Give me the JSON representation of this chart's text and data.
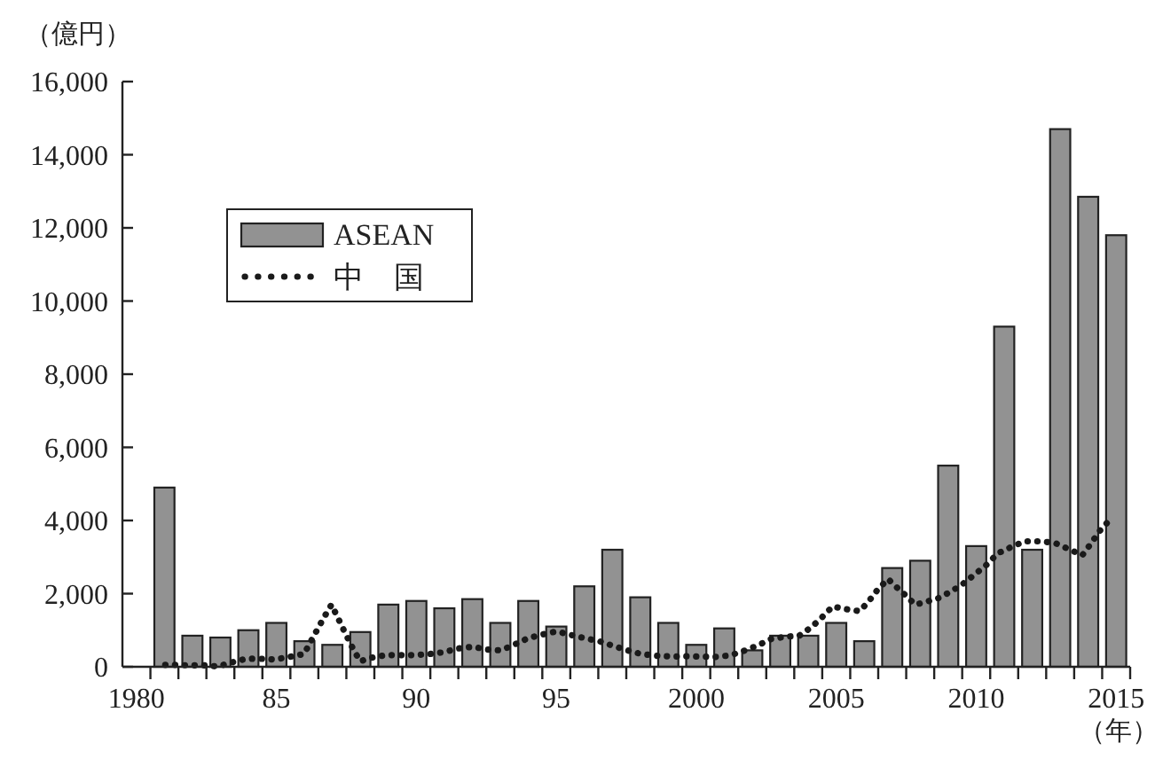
{
  "chart_data": {
    "type": "bar",
    "ylabel": "（億円）",
    "xlabel": "（年）",
    "xlim": [
      1979.5,
      2015.5
    ],
    "xticks": [
      {
        "value": 1980,
        "label": "1980"
      },
      {
        "value": 1985,
        "label": "85"
      },
      {
        "value": 1990,
        "label": "90"
      },
      {
        "value": 1995,
        "label": "95"
      },
      {
        "value": 2000,
        "label": "2000"
      },
      {
        "value": 2005,
        "label": "2005"
      },
      {
        "value": 2010,
        "label": "2010"
      },
      {
        "value": 2015,
        "label": "2015"
      },
      {
        "value": 1980.5,
        "label": null
      },
      {
        "value": 1981.5,
        "label": null
      },
      {
        "value": 1982.5,
        "label": null
      },
      {
        "value": 1983.5,
        "label": null
      },
      {
        "value": 1984.5,
        "label": null
      },
      {
        "value": 1985.5,
        "label": null
      },
      {
        "value": 1986.5,
        "label": null
      },
      {
        "value": 1987.5,
        "label": null
      },
      {
        "value": 1988.5,
        "label": null
      },
      {
        "value": 1989.5,
        "label": null
      },
      {
        "value": 1990.5,
        "label": null
      },
      {
        "value": 1991.5,
        "label": null
      },
      {
        "value": 1992.5,
        "label": null
      },
      {
        "value": 1993.5,
        "label": null
      },
      {
        "value": 1994.5,
        "label": null
      },
      {
        "value": 1995.5,
        "label": null
      },
      {
        "value": 1996.5,
        "label": null
      },
      {
        "value": 1997.5,
        "label": null
      },
      {
        "value": 1998.5,
        "label": null
      },
      {
        "value": 1999.5,
        "label": null
      },
      {
        "value": 2000.5,
        "label": null
      },
      {
        "value": 2001.5,
        "label": null
      },
      {
        "value": 2002.5,
        "label": null
      },
      {
        "value": 2003.5,
        "label": null
      },
      {
        "value": 2004.5,
        "label": null
      },
      {
        "value": 2005.5,
        "label": null
      },
      {
        "value": 2006.5,
        "label": null
      },
      {
        "value": 2007.5,
        "label": null
      },
      {
        "value": 2008.5,
        "label": null
      },
      {
        "value": 2009.5,
        "label": null
      },
      {
        "value": 2010.5,
        "label": null
      },
      {
        "value": 2011.5,
        "label": null
      },
      {
        "value": 2012.5,
        "label": null
      },
      {
        "value": 2013.5,
        "label": null
      },
      {
        "value": 2014.5,
        "label": null
      },
      {
        "value": 2015.5,
        "label": null
      }
    ],
    "ylim": [
      0,
      16000
    ],
    "yticks": [
      0,
      {
        "value": 2000,
        "label": "2,000"
      },
      {
        "value": 4000,
        "label": "4,000"
      },
      {
        "value": 6000,
        "label": "6,000"
      },
      {
        "value": 8000,
        "label": "8,000"
      },
      {
        "value": 10000,
        "label": "10,000"
      },
      {
        "value": 12000,
        "label": "12,000"
      },
      {
        "value": 14000,
        "label": "14,000"
      },
      {
        "value": 16000,
        "label": "16,000"
      }
    ],
    "legend": "left",
    "grid": false,
    "series": [
      {
        "name": "ASEAN",
        "color": "#929292",
        "x": [
          1981,
          1982,
          1983,
          1984,
          1985,
          1986,
          1987,
          1988,
          1989,
          1990,
          1991,
          1992,
          1993,
          1994,
          1995,
          1996,
          1997,
          1998,
          1999,
          2000,
          2001,
          2002,
          2003,
          2004,
          2005,
          2006,
          2007,
          2008,
          2009,
          2010,
          2011,
          2012,
          2013,
          2014,
          2015
        ],
        "values": [
          4900,
          850,
          800,
          1000,
          1200,
          700,
          600,
          950,
          1700,
          1800,
          1600,
          1850,
          1200,
          1800,
          1100,
          2200,
          3200,
          1900,
          1200,
          600,
          1050,
          450,
          850,
          850,
          1200,
          700,
          2700,
          2900,
          5500,
          3300,
          9300,
          3200,
          14700,
          12850,
          11800
        ]
      },
      {
        "name": "中　国",
        "type": "line",
        "color": "#1a1a1a",
        "line_style": "dotted",
        "x": [
          1981.03,
          1981.37,
          1981.87,
          1982.4,
          1982.9,
          1983.41,
          1983.92,
          1984.44,
          1984.95,
          1985.46,
          1985.99,
          1986.2,
          1986.45,
          1986.7,
          1986.97,
          1987.19,
          1987.44,
          1987.7,
          1987.99,
          1988.41,
          1988.92,
          1989.44,
          1989.95,
          1990.48,
          1990.99,
          1991.49,
          1992.02,
          1992.53,
          1993.03,
          1993.54,
          1993.98,
          1994.49,
          1995.01,
          1995.52,
          1996.03,
          1996.53,
          1997.04,
          1997.54,
          1998.03,
          1998.58,
          1999.13,
          1999.63,
          2000.16,
          2000.69,
          2001.2,
          2001.68,
          2002.19,
          2002.67,
          2003.18,
          2003.68,
          2004.11,
          2004.49,
          2004.87,
          2005.31,
          2005.84,
          2006.15,
          2006.47,
          2006.85,
          2007.15,
          2007.48,
          2007.82,
          2008.14,
          2008.66,
          2009.13,
          2009.55,
          2009.97,
          2010.39,
          2010.77,
          2011.24,
          2011.72,
          2012.27,
          2012.8,
          2013.3,
          2013.79,
          2014.09,
          2014.42,
          2014.8
        ],
        "values": [
          50,
          50,
          40,
          40,
          10,
          120,
          220,
          220,
          200,
          270,
          350,
          650,
          1000,
          1350,
          1700,
          1350,
          950,
          550,
          150,
          250,
          320,
          320,
          320,
          350,
          400,
          500,
          550,
          470,
          450,
          620,
          780,
          880,
          970,
          870,
          780,
          700,
          570,
          450,
          350,
          300,
          280,
          290,
          280,
          270,
          310,
          430,
          580,
          760,
          820,
          850,
          1080,
          1350,
          1650,
          1580,
          1520,
          1780,
          2100,
          2400,
          2180,
          1950,
          1700,
          1760,
          1880,
          2070,
          2280,
          2540,
          2800,
          3100,
          3270,
          3430,
          3430,
          3390,
          3220,
          3050,
          3360,
          3720,
          4040
        ]
      }
    ]
  }
}
